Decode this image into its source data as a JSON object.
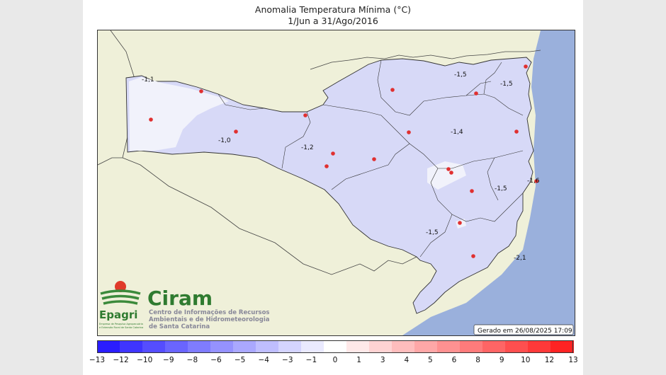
{
  "title": "Anomalia Temperatura Mínima (°C)",
  "period": "1/Jun a 31/Ago/2016",
  "generated": "Gerado em 26/08/2025 17:09",
  "logo": {
    "epagri": "Epagri",
    "epagri_sub1": "Empresa de Pesquisa Agropecuária",
    "epagri_sub2": "e Extensão Rural de Santa Catarina",
    "ciram": "Ciram",
    "ciram_sub1": "Centro de Informações de Recursos",
    "ciram_sub2": "Ambientais e de Hidrometeorologia",
    "ciram_sub3": "de Santa Catarina"
  },
  "contour_labels": [
    "-1,1",
    "-1,0",
    "-1,2",
    "-1,5",
    "-1,5",
    "-1,4",
    "-1,5",
    "-1,6",
    "-1,5",
    "-2,1"
  ],
  "colorbar": {
    "ticks": [
      "−13",
      "−12",
      "−10",
      "−9",
      "−8",
      "−6",
      "−5",
      "−4",
      "−3",
      "−1",
      "0",
      "1",
      "3",
      "4",
      "5",
      "6",
      "8",
      "9",
      "10",
      "12",
      "13"
    ],
    "colors": [
      "#2a1dff",
      "#3f35ff",
      "#554dff",
      "#6a65ff",
      "#7f7cff",
      "#9592ff",
      "#aaa8ff",
      "#bfbeff",
      "#d4d4ff",
      "#eaeaff",
      "#ffffff",
      "#ffe9e9",
      "#ffd3d3",
      "#ffbdbd",
      "#ffa7a7",
      "#ff9191",
      "#ff7b7b",
      "#ff6565",
      "#ff4f4f",
      "#ff3939",
      "#ff2323"
    ]
  },
  "colors": {
    "ocean": "#9ab0dc",
    "land": "#eff0d9",
    "state_fill": "#d7d9f7",
    "warm_patch": "#f1f2fb",
    "station": "#e03030"
  }
}
